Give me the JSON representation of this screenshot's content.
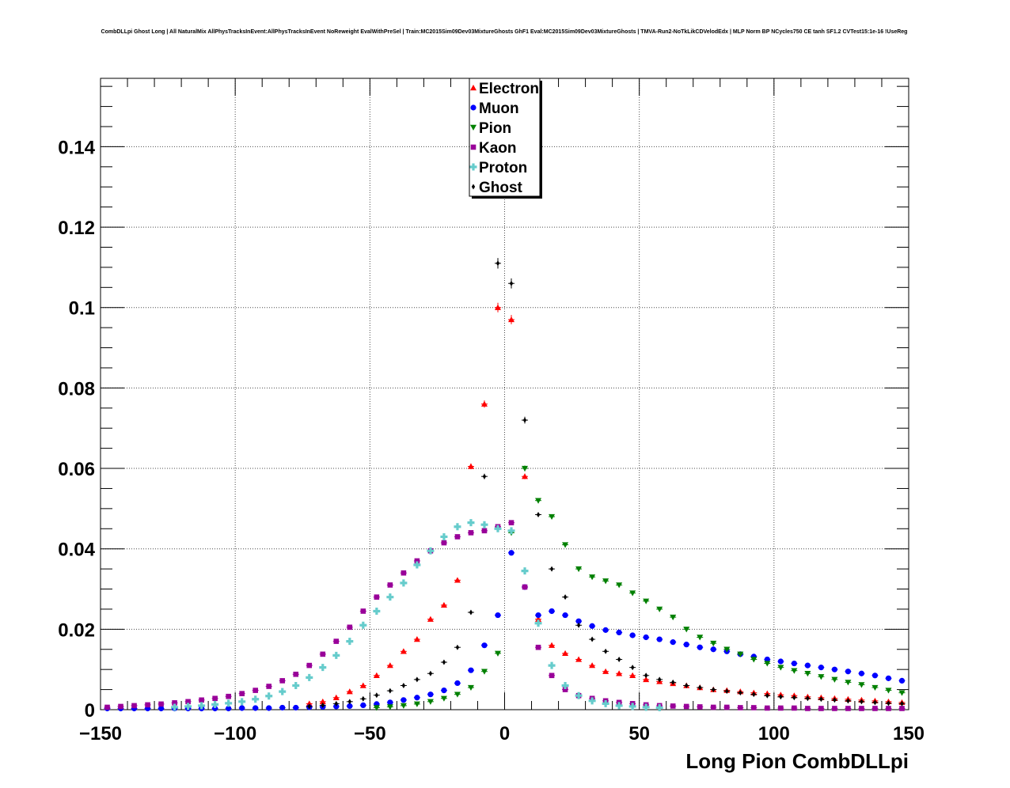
{
  "chart_data": {
    "type": "scatter",
    "title": "CombDLLpi Ghost Long | All NaturalMix AllPhysTracksInEvent:AllPhysTracksInEvent NoReweight EvalWithPreSel | Train:MC2015Sim09Dev03MixtureGhosts GhF1 Eval:MC2015Sim09Dev03MixtureGhosts | TMVA-Run2-NoTkLikCDVelodEdx | MLP Norm BP NCycles750 CE tanh SF1.2 CVTest15:1e-16 !UseReg",
    "xlabel": "Long Pion CombDLLpi",
    "ylabel": "",
    "xlim": [
      -150,
      150
    ],
    "ylim": [
      0,
      0.157
    ],
    "grid": true,
    "legend_position": "top-center",
    "x_tick_labels": [
      "−150",
      "−100",
      "−50",
      "0",
      "50",
      "100",
      "150"
    ],
    "y_tick_labels": [
      "0",
      "0.02",
      "0.04",
      "0.06",
      "0.08",
      "0.1",
      "0.12",
      "0.14"
    ],
    "series": [
      {
        "name": "Electron",
        "color": "#ff0000",
        "marker": "triangle-up",
        "x": [
          -72.5,
          -67.5,
          -62.5,
          -57.5,
          -52.5,
          -47.5,
          -42.5,
          -37.5,
          -32.5,
          -27.5,
          -22.5,
          -17.5,
          -12.5,
          -7.5,
          -2.5,
          2.5,
          7.5,
          12.5,
          17.5,
          22.5,
          27.5,
          32.5,
          37.5,
          42.5,
          47.5,
          52.5,
          57.5,
          62.5,
          67.5,
          72.5,
          77.5,
          82.5,
          87.5,
          92.5,
          97.5,
          102.5,
          107.5,
          112.5,
          117.5,
          122.5,
          127.5,
          132.5,
          137.5,
          142.5,
          147.5
        ],
        "y": [
          0.0015,
          0.002,
          0.003,
          0.0045,
          0.006,
          0.0085,
          0.011,
          0.0145,
          0.0175,
          0.0225,
          0.026,
          0.0322,
          0.0605,
          0.076,
          0.1,
          0.097,
          0.058,
          0.0225,
          0.016,
          0.014,
          0.0125,
          0.011,
          0.0095,
          0.009,
          0.0085,
          0.0075,
          0.007,
          0.0065,
          0.006,
          0.0055,
          0.005,
          0.0048,
          0.0045,
          0.0042,
          0.004,
          0.0037,
          0.0035,
          0.0032,
          0.003,
          0.0028,
          0.0026,
          0.0024,
          0.0022,
          0.002,
          0.0018
        ],
        "error_bars": true
      },
      {
        "name": "Muon",
        "color": "#0000ff",
        "marker": "circle",
        "x": [
          -147.5,
          -142.5,
          -137.5,
          -132.5,
          -127.5,
          -122.5,
          -117.5,
          -112.5,
          -107.5,
          -102.5,
          -97.5,
          -92.5,
          -87.5,
          -82.5,
          -77.5,
          -72.5,
          -67.5,
          -62.5,
          -57.5,
          -52.5,
          -47.5,
          -42.5,
          -37.5,
          -32.5,
          -27.5,
          -22.5,
          -17.5,
          -12.5,
          -7.5,
          -2.5,
          2.5,
          7.5,
          12.5,
          17.5,
          22.5,
          27.5,
          32.5,
          37.5,
          42.5,
          47.5,
          52.5,
          57.5,
          62.5,
          67.5,
          72.5,
          77.5,
          82.5,
          87.5,
          92.5,
          97.5,
          102.5,
          107.5,
          112.5,
          117.5,
          122.5,
          127.5,
          132.5,
          137.5,
          142.5,
          147.5
        ],
        "y": [
          0.0003,
          0.0003,
          0.0003,
          0.0003,
          0.0003,
          0.0003,
          0.0003,
          0.0003,
          0.0003,
          0.0003,
          0.0004,
          0.0004,
          0.0004,
          0.0005,
          0.0005,
          0.0006,
          0.0007,
          0.0008,
          0.0009,
          0.0011,
          0.0014,
          0.0018,
          0.0024,
          0.003,
          0.0038,
          0.0048,
          0.0066,
          0.0098,
          0.016,
          0.0235,
          0.039,
          0.0305,
          0.0235,
          0.0245,
          0.0235,
          0.022,
          0.0208,
          0.0198,
          0.0192,
          0.0185,
          0.018,
          0.0175,
          0.0168,
          0.0162,
          0.0155,
          0.015,
          0.0145,
          0.0138,
          0.0132,
          0.0125,
          0.012,
          0.0115,
          0.011,
          0.0105,
          0.01,
          0.0095,
          0.009,
          0.0085,
          0.0078,
          0.0072
        ],
        "error_bars": true
      },
      {
        "name": "Pion",
        "color": "#008000",
        "marker": "triangle-down",
        "x": [
          -47.5,
          -42.5,
          -37.5,
          -32.5,
          -27.5,
          -22.5,
          -17.5,
          -12.5,
          -7.5,
          -2.5,
          2.5,
          7.5,
          12.5,
          17.5,
          22.5,
          27.5,
          32.5,
          37.5,
          42.5,
          47.5,
          52.5,
          57.5,
          62.5,
          67.5,
          72.5,
          77.5,
          82.5,
          87.5,
          92.5,
          97.5,
          102.5,
          107.5,
          112.5,
          117.5,
          122.5,
          127.5,
          132.5,
          137.5,
          142.5,
          147.5
        ],
        "y": [
          0.0005,
          0.0007,
          0.001,
          0.0014,
          0.002,
          0.0028,
          0.0038,
          0.0055,
          0.0095,
          0.014,
          0.044,
          0.06,
          0.052,
          0.048,
          0.041,
          0.035,
          0.033,
          0.032,
          0.031,
          0.029,
          0.027,
          0.025,
          0.023,
          0.02,
          0.018,
          0.0165,
          0.015,
          0.0138,
          0.0125,
          0.0115,
          0.0105,
          0.0097,
          0.009,
          0.0082,
          0.0075,
          0.0068,
          0.0062,
          0.0055,
          0.0048,
          0.0042
        ],
        "error_bars": true
      },
      {
        "name": "Kaon",
        "color": "#990099",
        "marker": "square",
        "x": [
          -147.5,
          -142.5,
          -137.5,
          -132.5,
          -127.5,
          -122.5,
          -117.5,
          -112.5,
          -107.5,
          -102.5,
          -97.5,
          -92.5,
          -87.5,
          -82.5,
          -77.5,
          -72.5,
          -67.5,
          -62.5,
          -57.5,
          -52.5,
          -47.5,
          -42.5,
          -37.5,
          -32.5,
          -27.5,
          -22.5,
          -17.5,
          -12.5,
          -7.5,
          -2.5,
          2.5,
          7.5,
          12.5,
          17.5,
          22.5,
          27.5,
          32.5,
          37.5,
          42.5,
          47.5,
          52.5,
          57.5,
          62.5,
          67.5,
          72.5,
          77.5,
          82.5,
          87.5,
          92.5,
          97.5,
          102.5,
          107.5,
          112.5,
          117.5,
          122.5,
          127.5,
          132.5,
          137.5,
          142.5,
          147.5
        ],
        "y": [
          0.0006,
          0.0008,
          0.001,
          0.0012,
          0.0014,
          0.0017,
          0.002,
          0.0024,
          0.0028,
          0.0033,
          0.004,
          0.0048,
          0.0058,
          0.0072,
          0.0088,
          0.011,
          0.0138,
          0.017,
          0.0205,
          0.0245,
          0.028,
          0.031,
          0.034,
          0.037,
          0.0395,
          0.0415,
          0.043,
          0.044,
          0.0445,
          0.0455,
          0.0465,
          0.0305,
          0.0155,
          0.0085,
          0.005,
          0.0035,
          0.0028,
          0.0022,
          0.0018,
          0.0015,
          0.0012,
          0.001,
          0.0009,
          0.0008,
          0.0007,
          0.0006,
          0.0006,
          0.0005,
          0.0005,
          0.0004,
          0.0004,
          0.0004,
          0.0003,
          0.0003,
          0.0003,
          0.0003,
          0.0003,
          0.0003,
          0.0003,
          0.0003
        ],
        "error_bars": true
      },
      {
        "name": "Proton",
        "color": "#66cccc",
        "marker": "cross",
        "x": [
          -122.5,
          -117.5,
          -112.5,
          -107.5,
          -102.5,
          -97.5,
          -92.5,
          -87.5,
          -82.5,
          -77.5,
          -72.5,
          -67.5,
          -62.5,
          -57.5,
          -52.5,
          -47.5,
          -42.5,
          -37.5,
          -32.5,
          -27.5,
          -22.5,
          -17.5,
          -12.5,
          -7.5,
          -2.5,
          2.5,
          7.5,
          12.5,
          17.5,
          22.5,
          27.5,
          32.5,
          37.5,
          42.5,
          47.5,
          52.5,
          57.5
        ],
        "y": [
          0.0006,
          0.0008,
          0.001,
          0.0013,
          0.0016,
          0.002,
          0.0026,
          0.0034,
          0.0045,
          0.006,
          0.008,
          0.0105,
          0.0135,
          0.017,
          0.021,
          0.0245,
          0.028,
          0.0315,
          0.036,
          0.0395,
          0.043,
          0.0455,
          0.0465,
          0.046,
          0.045,
          0.0445,
          0.0345,
          0.0215,
          0.011,
          0.006,
          0.0035,
          0.0022,
          0.0015,
          0.001,
          0.0008,
          0.0006,
          0.0005
        ],
        "error_bars": true
      },
      {
        "name": "Ghost",
        "color": "#000000",
        "marker": "diamond",
        "x": [
          -72.5,
          -67.5,
          -62.5,
          -57.5,
          -52.5,
          -47.5,
          -42.5,
          -37.5,
          -32.5,
          -27.5,
          -22.5,
          -17.5,
          -12.5,
          -7.5,
          -2.5,
          2.5,
          7.5,
          12.5,
          17.5,
          22.5,
          27.5,
          32.5,
          37.5,
          42.5,
          47.5,
          52.5,
          57.5,
          62.5,
          67.5,
          72.5,
          77.5,
          82.5,
          87.5,
          92.5,
          97.5,
          102.5,
          107.5,
          112.5,
          117.5,
          122.5,
          127.5,
          132.5,
          137.5,
          142.5,
          147.5
        ],
        "y": [
          0.0008,
          0.0011,
          0.0015,
          0.002,
          0.0027,
          0.0036,
          0.0047,
          0.006,
          0.0075,
          0.009,
          0.0118,
          0.0155,
          0.0242,
          0.058,
          0.111,
          0.106,
          0.072,
          0.0485,
          0.035,
          0.028,
          0.021,
          0.0175,
          0.0145,
          0.0125,
          0.0105,
          0.0085,
          0.0075,
          0.0068,
          0.006,
          0.0055,
          0.005,
          0.0046,
          0.0042,
          0.0038,
          0.0035,
          0.0032,
          0.003,
          0.0028,
          0.0026,
          0.0024,
          0.0022,
          0.002,
          0.0018,
          0.0016,
          0.0015
        ],
        "error_bars": true
      }
    ]
  }
}
